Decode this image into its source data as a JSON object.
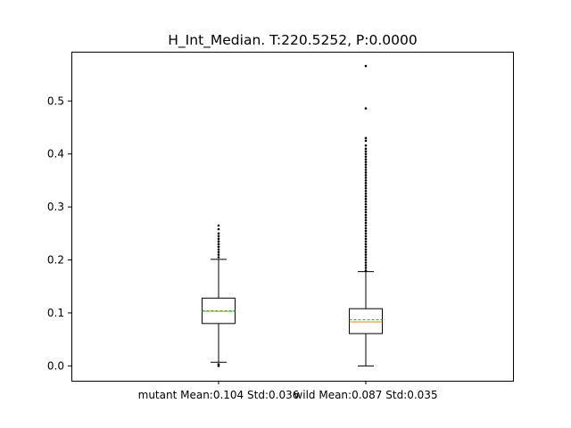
{
  "chart_data": {
    "type": "boxplot",
    "title": "H_Int_Median. T:220.5252, P:0.0000",
    "xlabel": "",
    "ylabel": "",
    "ylim": [
      -0.028,
      0.593
    ],
    "yticks": [
      0.0,
      0.1,
      0.2,
      0.3,
      0.4,
      0.5
    ],
    "ytick_labels": [
      "0.0",
      "0.1",
      "0.2",
      "0.3",
      "0.4",
      "0.5"
    ],
    "categories": [
      "mutant Mean:0.104 Std:0.036",
      "wild Mean:0.087 Std:0.035"
    ],
    "boxes": [
      {
        "label": "mutant Mean:0.104 Std:0.036",
        "whisker_low": 0.007,
        "q1": 0.08,
        "median": 0.103,
        "mean": 0.104,
        "q3": 0.128,
        "whisker_high": 0.201,
        "outliers_high": [
          0.205,
          0.21,
          0.215,
          0.22,
          0.225,
          0.23,
          0.235,
          0.24,
          0.245,
          0.25,
          0.258,
          0.265
        ],
        "outliers_low": [
          0.003,
          0.0
        ]
      },
      {
        "label": "wild Mean:0.087 Std:0.035",
        "whisker_low": 0.0,
        "q1": 0.061,
        "median": 0.083,
        "mean": 0.087,
        "q3": 0.108,
        "whisker_high": 0.178,
        "outliers_high": [
          0.18,
          0.185,
          0.19,
          0.195,
          0.2,
          0.205,
          0.21,
          0.215,
          0.22,
          0.225,
          0.23,
          0.235,
          0.24,
          0.245,
          0.25,
          0.255,
          0.26,
          0.265,
          0.27,
          0.275,
          0.28,
          0.285,
          0.29,
          0.295,
          0.3,
          0.305,
          0.31,
          0.315,
          0.32,
          0.325,
          0.33,
          0.335,
          0.34,
          0.345,
          0.35,
          0.355,
          0.36,
          0.365,
          0.37,
          0.375,
          0.38,
          0.385,
          0.39,
          0.395,
          0.4,
          0.405,
          0.41,
          0.416,
          0.425,
          0.43,
          0.486,
          0.566
        ],
        "outliers_low": []
      }
    ],
    "colors": {
      "box": "#000000",
      "median": "#ff7f0e",
      "mean": "#2ca02c",
      "outlier": "#000000"
    },
    "mean_line_style": "dashed",
    "grid": false,
    "legend": "none"
  }
}
